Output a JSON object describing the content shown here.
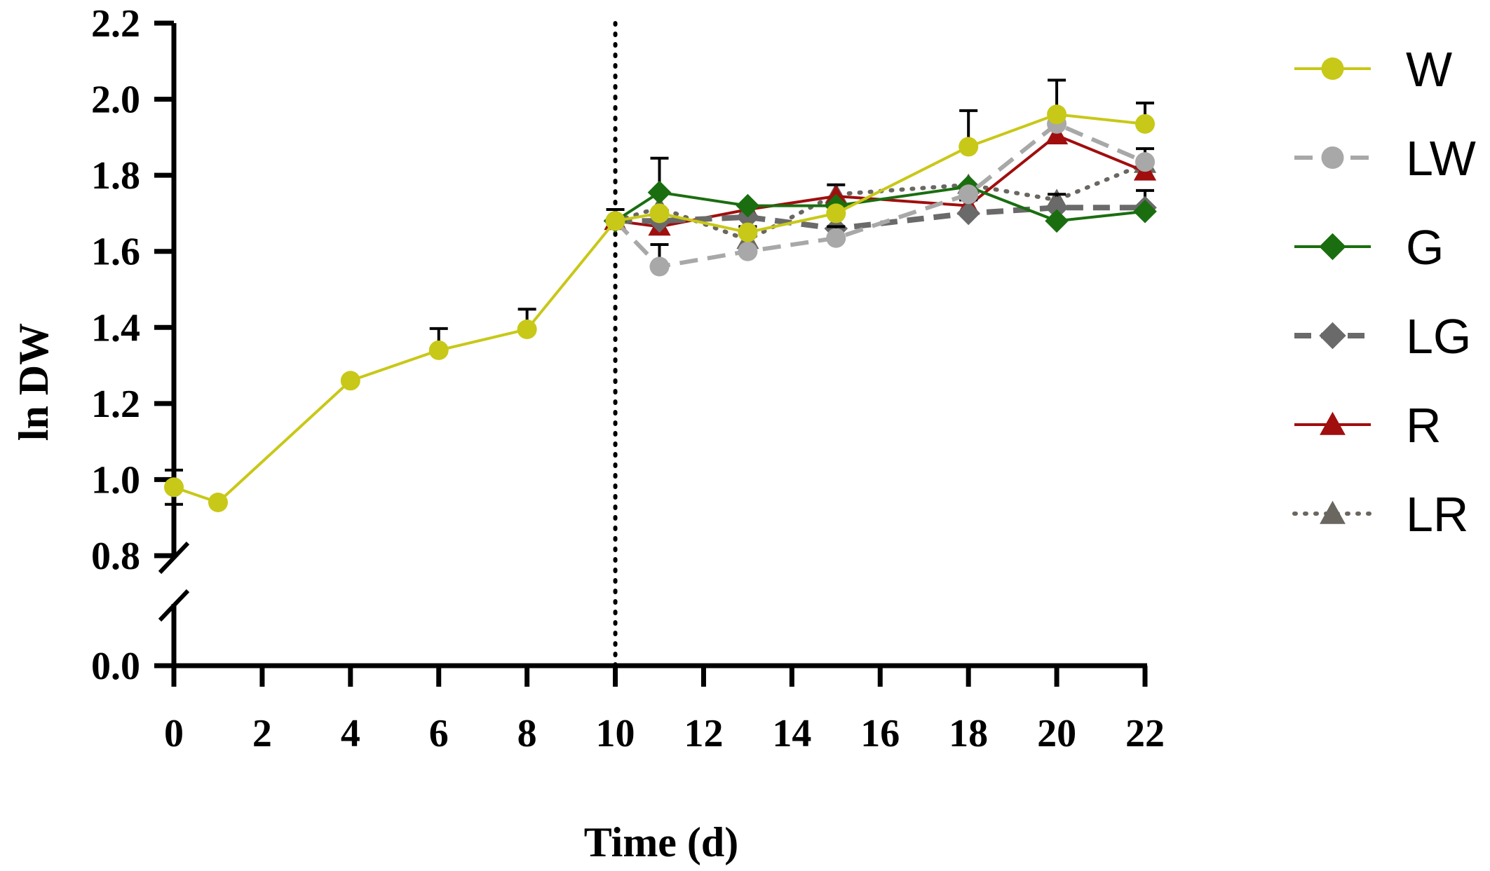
{
  "chart_data": {
    "type": "line",
    "xlabel": "Time (d)",
    "ylabel": "ln DW",
    "xlim": [
      0,
      22
    ],
    "x_ticks": [
      "0",
      "2",
      "4",
      "6",
      "8",
      "10",
      "12",
      "14",
      "16",
      "18",
      "20",
      "22"
    ],
    "y_ticks_upper": [
      "0.8",
      "1.0",
      "1.2",
      "1.4",
      "1.6",
      "1.8",
      "2.0",
      "2.2"
    ],
    "y_ticks_lower": [
      "0.0"
    ],
    "y_break": [
      0.0,
      0.8
    ],
    "vertical_reference_line": {
      "x": 10,
      "style": "dotted"
    },
    "grid": false,
    "legend_position": "right",
    "series": [
      {
        "name": "W",
        "color": "#c8c818",
        "marker": "circle",
        "line": "solid",
        "x": [
          0,
          1,
          4,
          6,
          8,
          10,
          11,
          13,
          15,
          18,
          20,
          22
        ],
        "y": [
          0.98,
          0.94,
          1.26,
          1.34,
          1.395,
          1.68,
          1.7,
          1.65,
          1.7,
          1.875,
          1.96,
          1.935
        ],
        "err": [
          0.045,
          0,
          0,
          0.057,
          0.053,
          0.03,
          0,
          0,
          0,
          0.095,
          0.09,
          0.055
        ]
      },
      {
        "name": "LW",
        "color": "#a8a8a8",
        "marker": "circle",
        "line": "dashed",
        "x": [
          10,
          11,
          13,
          15,
          18,
          20,
          22
        ],
        "y": [
          1.68,
          1.56,
          1.6,
          1.635,
          1.75,
          1.935,
          1.835
        ],
        "err": [
          0,
          0.058,
          0,
          0.03,
          0,
          0,
          0.035
        ]
      },
      {
        "name": "G",
        "color": "#1a6e10",
        "marker": "diamond",
        "line": "solid",
        "x": [
          10,
          11,
          13,
          15,
          18,
          20,
          22
        ],
        "y": [
          1.68,
          1.755,
          1.72,
          1.72,
          1.77,
          1.68,
          1.705
        ],
        "err": [
          0,
          0.09,
          0,
          0,
          0,
          0,
          0
        ]
      },
      {
        "name": "LG",
        "color": "#6a6a6a",
        "marker": "diamond",
        "line": "dashed-thick",
        "x": [
          10,
          11,
          13,
          15,
          18,
          20,
          22
        ],
        "y": [
          1.68,
          1.68,
          1.69,
          1.66,
          1.7,
          1.715,
          1.715
        ],
        "err": [
          0,
          0,
          0,
          0,
          0.035,
          0.035,
          0.045
        ]
      },
      {
        "name": "R",
        "color": "#a00e0e",
        "marker": "triangle",
        "line": "solid",
        "x": [
          10,
          11,
          13,
          15,
          18,
          20,
          22
        ],
        "y": [
          1.68,
          1.665,
          1.71,
          1.745,
          1.72,
          1.905,
          1.81
        ],
        "err": [
          0,
          0,
          0,
          0.03,
          0,
          0.03,
          0
        ]
      },
      {
        "name": "LR",
        "color": "#6a6660",
        "marker": "triangle",
        "line": "dotted",
        "x": [
          10,
          11,
          13,
          15,
          18,
          20,
          22
        ],
        "y": [
          1.68,
          1.715,
          1.63,
          1.75,
          1.775,
          1.735,
          1.83
        ],
        "err": [
          0,
          0,
          0.035,
          0,
          0,
          0,
          0
        ]
      }
    ]
  }
}
